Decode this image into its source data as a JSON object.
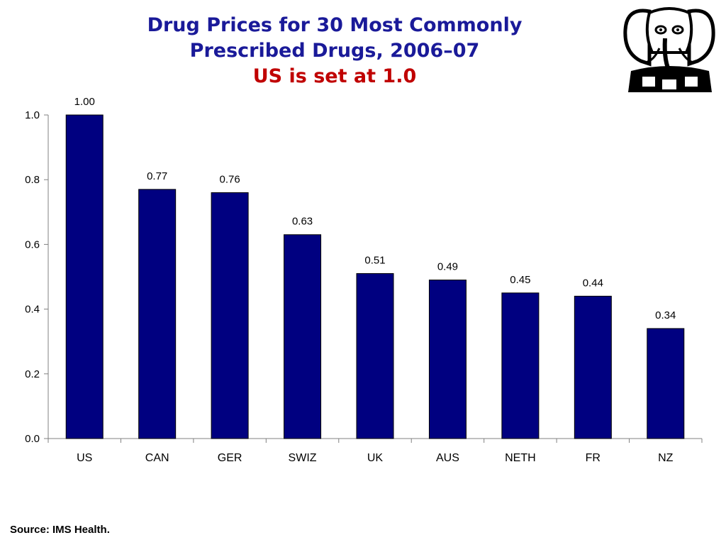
{
  "chart_data": {
    "type": "bar",
    "title": "Drug Prices for 30 Most Commonly Prescribed Drugs, 2006–07",
    "title_lines": [
      "Drug Prices for 30 Most Commonly",
      "Prescribed Drugs, 2006–07"
    ],
    "subtitle": "US is set at 1.0",
    "categories": [
      "US",
      "CAN",
      "GER",
      "SWIZ",
      "UK",
      "AUS",
      "NETH",
      "FR",
      "NZ"
    ],
    "values": [
      1.0,
      0.77,
      0.76,
      0.63,
      0.51,
      0.49,
      0.45,
      0.44,
      0.34
    ],
    "data_labels": [
      "1.00",
      "0.77",
      "0.76",
      "0.63",
      "0.51",
      "0.49",
      "0.45",
      "0.44",
      "0.34"
    ],
    "y_ticks": [
      "0.0",
      "0.2",
      "0.4",
      "0.6",
      "0.8",
      "1.0"
    ],
    "ylim": [
      0,
      1.0
    ],
    "xlabel": "",
    "ylabel": "",
    "grid": false,
    "bar_color": "#000080"
  },
  "footer": {
    "source": "Source: IMS Health."
  },
  "logo": {
    "icon": "elephant-logo-icon"
  }
}
